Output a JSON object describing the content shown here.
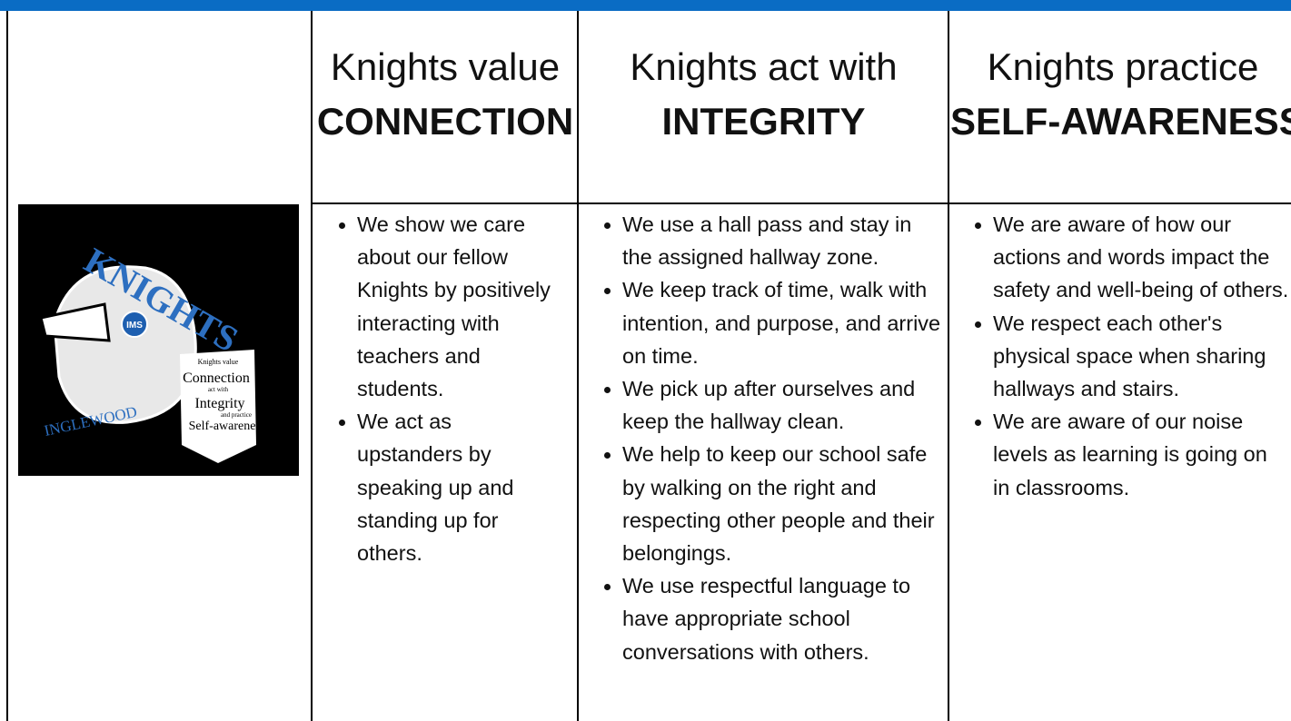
{
  "logo": {
    "word": "KNIGHTS",
    "badge": "IMS",
    "school": "INGLEWOOD",
    "banner": [
      "Knights value",
      "Connection",
      "act with",
      "Integrity",
      "and practice",
      "Self-awareness"
    ]
  },
  "table": {
    "columns": [
      {
        "line1": "Knights value",
        "line2": "CONNECTION",
        "items": [
          "We show we care about our fellow Knights by positively interacting with teachers and students.",
          "We act as upstanders by speaking up and standing up for others."
        ]
      },
      {
        "line1": "Knights act with",
        "line2": "INTEGRITY",
        "items": [
          "We use a hall pass and stay in the assigned hallway zone.",
          "We keep track of time, walk with intention, and purpose, and arrive on time.",
          "We pick up after ourselves and keep the hallway clean.",
          "We help to keep our school safe by walking on the right and respecting other people and their belongings.",
          "We use respectful language to have appropriate school conversations with others."
        ]
      },
      {
        "line1": "Knights practice",
        "line2": "SELF-AWARENESS",
        "items": [
          "We are aware of how our actions and words impact the safety and well-being of others.",
          "We respect each other's physical space when sharing hallways and stairs.",
          "We are aware of our noise levels as learning is going on in classrooms."
        ]
      }
    ]
  }
}
